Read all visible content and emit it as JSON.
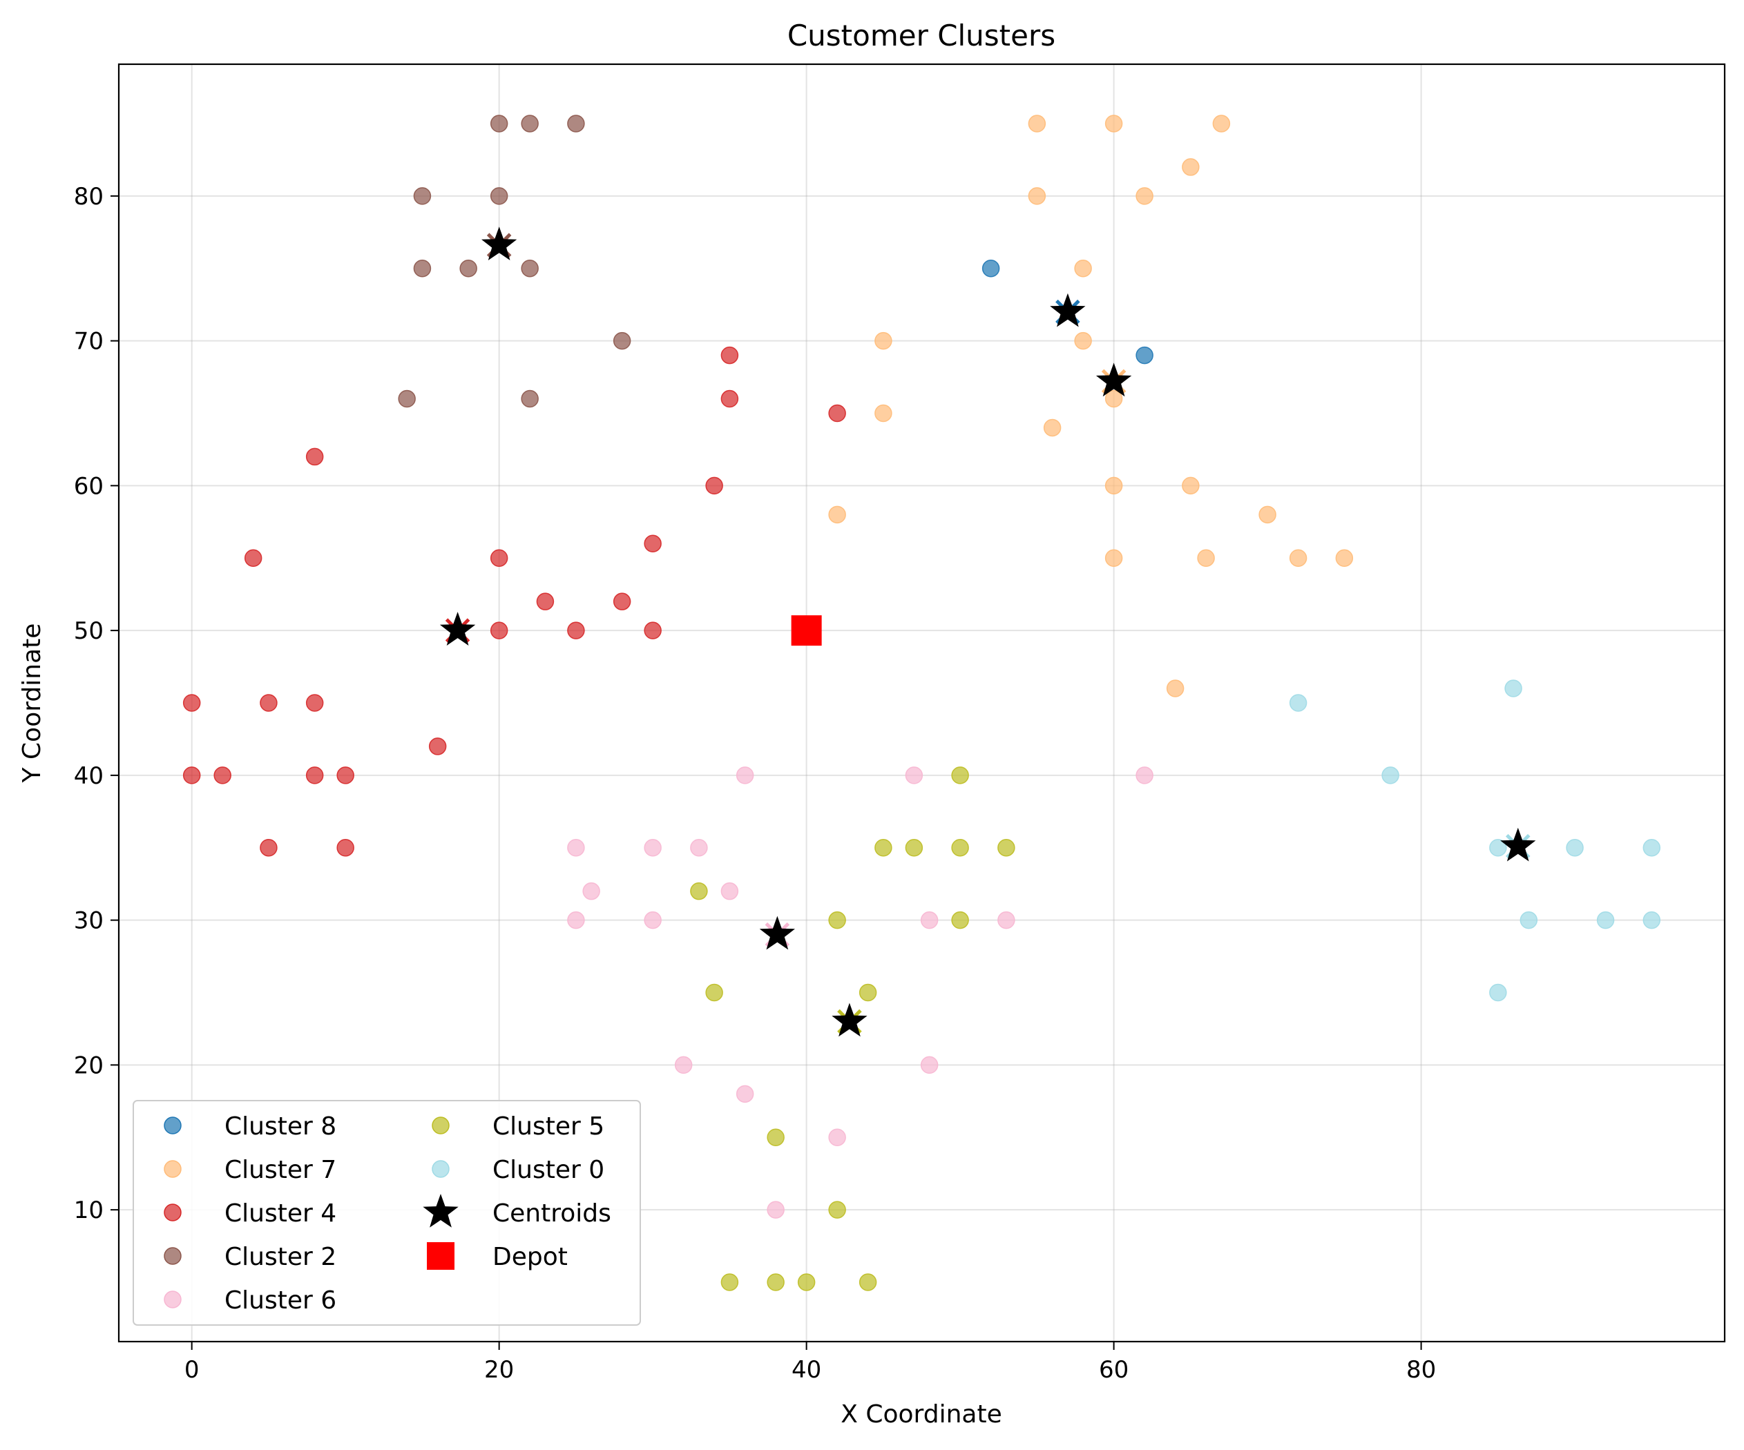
{
  "chart_data": {
    "type": "scatter",
    "title": "Customer Clusters",
    "xlabel": "X Coordinate",
    "ylabel": "Y Coordinate",
    "xlim": [
      -4.75,
      99.75
    ],
    "ylim": [
      0.9,
      89.1
    ],
    "xticks": [
      0,
      20,
      40,
      60,
      80
    ],
    "yticks": [
      10,
      20,
      30,
      40,
      50,
      60,
      70,
      80
    ],
    "grid": true,
    "legend_position": "lower-left",
    "series": [
      {
        "name": "Cluster 8",
        "color": "#1f77b4",
        "points": [
          [
            52,
            75
          ],
          [
            62,
            69
          ]
        ]
      },
      {
        "name": "Cluster 7",
        "color": "#ffbb78",
        "points": [
          [
            55,
            85
          ],
          [
            60,
            85
          ],
          [
            67,
            85
          ],
          [
            65,
            82
          ],
          [
            55,
            80
          ],
          [
            62,
            80
          ],
          [
            58,
            75
          ],
          [
            45,
            70
          ],
          [
            58,
            70
          ],
          [
            45,
            65
          ],
          [
            60,
            66
          ],
          [
            56,
            64
          ],
          [
            60,
            60
          ],
          [
            65,
            60
          ],
          [
            42,
            58
          ],
          [
            70,
            58
          ],
          [
            60,
            55
          ],
          [
            66,
            55
          ],
          [
            72,
            55
          ],
          [
            75,
            55
          ],
          [
            64,
            46
          ]
        ]
      },
      {
        "name": "Cluster 4",
        "color": "#d62728",
        "points": [
          [
            35,
            69
          ],
          [
            35,
            66
          ],
          [
            42,
            65
          ],
          [
            8,
            62
          ],
          [
            34,
            60
          ],
          [
            30,
            56
          ],
          [
            4,
            55
          ],
          [
            20,
            55
          ],
          [
            23,
            52
          ],
          [
            28,
            52
          ],
          [
            20,
            50
          ],
          [
            25,
            50
          ],
          [
            30,
            50
          ],
          [
            0,
            45
          ],
          [
            5,
            45
          ],
          [
            8,
            45
          ],
          [
            16,
            42
          ],
          [
            0,
            40
          ],
          [
            2,
            40
          ],
          [
            8,
            40
          ],
          [
            10,
            40
          ],
          [
            5,
            35
          ],
          [
            10,
            35
          ]
        ]
      },
      {
        "name": "Cluster 2",
        "color": "#8c564b",
        "points": [
          [
            20,
            85
          ],
          [
            22,
            85
          ],
          [
            25,
            85
          ],
          [
            15,
            80
          ],
          [
            20,
            80
          ],
          [
            15,
            75
          ],
          [
            18,
            75
          ],
          [
            22,
            75
          ],
          [
            28,
            70
          ],
          [
            14,
            66
          ],
          [
            22,
            66
          ]
        ]
      },
      {
        "name": "Cluster 6",
        "color": "#f7b6d2",
        "points": [
          [
            36,
            40
          ],
          [
            47,
            40
          ],
          [
            62,
            40
          ],
          [
            25,
            35
          ],
          [
            30,
            35
          ],
          [
            33,
            35
          ],
          [
            26,
            32
          ],
          [
            35,
            32
          ],
          [
            25,
            30
          ],
          [
            30,
            30
          ],
          [
            48,
            30
          ],
          [
            53,
            30
          ],
          [
            32,
            20
          ],
          [
            48,
            20
          ],
          [
            36,
            18
          ],
          [
            42,
            15
          ],
          [
            38,
            10
          ]
        ]
      },
      {
        "name": "Cluster 5",
        "color": "#bcbd22",
        "points": [
          [
            50,
            40
          ],
          [
            45,
            35
          ],
          [
            47,
            35
          ],
          [
            50,
            35
          ],
          [
            53,
            35
          ],
          [
            33,
            32
          ],
          [
            42,
            30
          ],
          [
            50,
            30
          ],
          [
            34,
            25
          ],
          [
            44,
            25
          ],
          [
            38,
            15
          ],
          [
            42,
            10
          ],
          [
            35,
            5
          ],
          [
            38,
            5
          ],
          [
            40,
            5
          ],
          [
            44,
            5
          ]
        ]
      },
      {
        "name": "Cluster 0",
        "color": "#9edae5",
        "points": [
          [
            86,
            46
          ],
          [
            72,
            45
          ],
          [
            78,
            40
          ],
          [
            85,
            35
          ],
          [
            90,
            35
          ],
          [
            95,
            35
          ],
          [
            87,
            30
          ],
          [
            92,
            30
          ],
          [
            95,
            30
          ],
          [
            85,
            25
          ]
        ]
      }
    ],
    "centroids": {
      "name": "Centroids",
      "color": "#000000",
      "points": [
        [
          57,
          72
        ],
        [
          60,
          67.2
        ],
        [
          17.3,
          50
        ],
        [
          20,
          76.6
        ],
        [
          38.1,
          29
        ],
        [
          42.8,
          23
        ],
        [
          86.3,
          35.1
        ]
      ],
      "point_colors": [
        "#1f77b4",
        "#ffbb78",
        "#d62728",
        "#8c564b",
        "#f7b6d2",
        "#bcbd22",
        "#9edae5"
      ]
    },
    "depot": {
      "name": "Depot",
      "color": "#ff0000",
      "points": [
        [
          40,
          50
        ]
      ]
    },
    "legend_order": [
      "Cluster 8",
      "Cluster 7",
      "Cluster 4",
      "Cluster 2",
      "Cluster 6",
      "Cluster 5",
      "Cluster 0",
      "Centroids",
      "Depot"
    ]
  }
}
